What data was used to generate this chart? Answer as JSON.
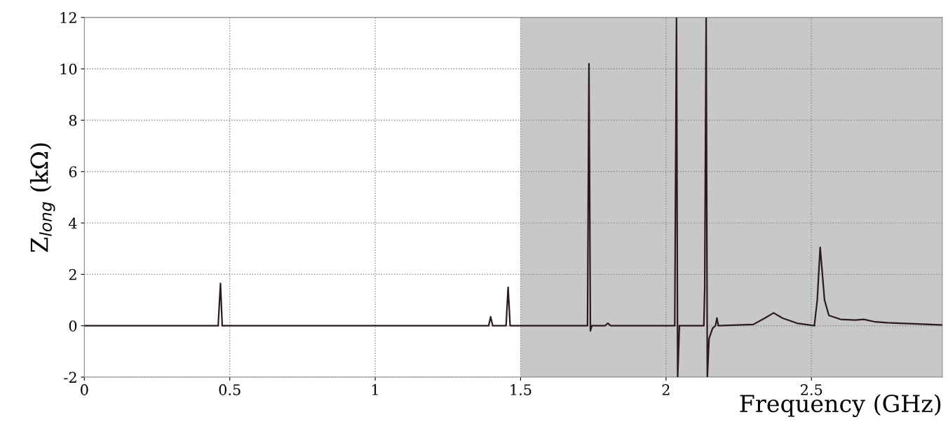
{
  "chart_data": {
    "type": "line",
    "xlabel": "Frequency (GHz)",
    "ylabel": "Z$_{long}$ (kΩ)",
    "xlim": [
      0,
      2.95
    ],
    "xticks": [
      0,
      0.5,
      1,
      1.5,
      2,
      2.5
    ],
    "ylim": [
      -2,
      12
    ],
    "yticks": [
      -2,
      0,
      2,
      4,
      6,
      8,
      10,
      12
    ],
    "grid": true,
    "bands": [
      {
        "axis": "x",
        "from": 1.5,
        "to": 2.95,
        "color": "#c8c8c8"
      }
    ],
    "series": [
      {
        "color": "#2b1b1b",
        "x": [
          0,
          0.46,
          0.468,
          0.474,
          1.39,
          1.397,
          1.404,
          1.45,
          1.457,
          1.464,
          1.73,
          1.735,
          1.74,
          1.745,
          1.79,
          1.8,
          1.81,
          2.03,
          2.036,
          2.04,
          2.046,
          2.13,
          2.133,
          2.138,
          2.142,
          2.148,
          2.16,
          2.17,
          2.175,
          2.18,
          2.3,
          2.34,
          2.37,
          2.4,
          2.45,
          2.51,
          2.52,
          2.53,
          2.545,
          2.56,
          2.6,
          2.65,
          2.68,
          2.72,
          2.76,
          2.85,
          2.95
        ],
        "values": [
          0,
          0,
          1.65,
          0,
          0,
          0.35,
          0,
          0,
          1.5,
          0,
          0,
          10.2,
          -0.2,
          0,
          0,
          0.1,
          0,
          0,
          12,
          -2,
          0,
          0,
          1.45,
          12,
          -2,
          -0.5,
          -0.1,
          0,
          0.3,
          0,
          0.05,
          0.3,
          0.5,
          0.3,
          0.1,
          0,
          1,
          3.05,
          1,
          0.4,
          0.25,
          0.22,
          0.25,
          0.15,
          0.12,
          0.08,
          0.03
        ]
      }
    ]
  }
}
